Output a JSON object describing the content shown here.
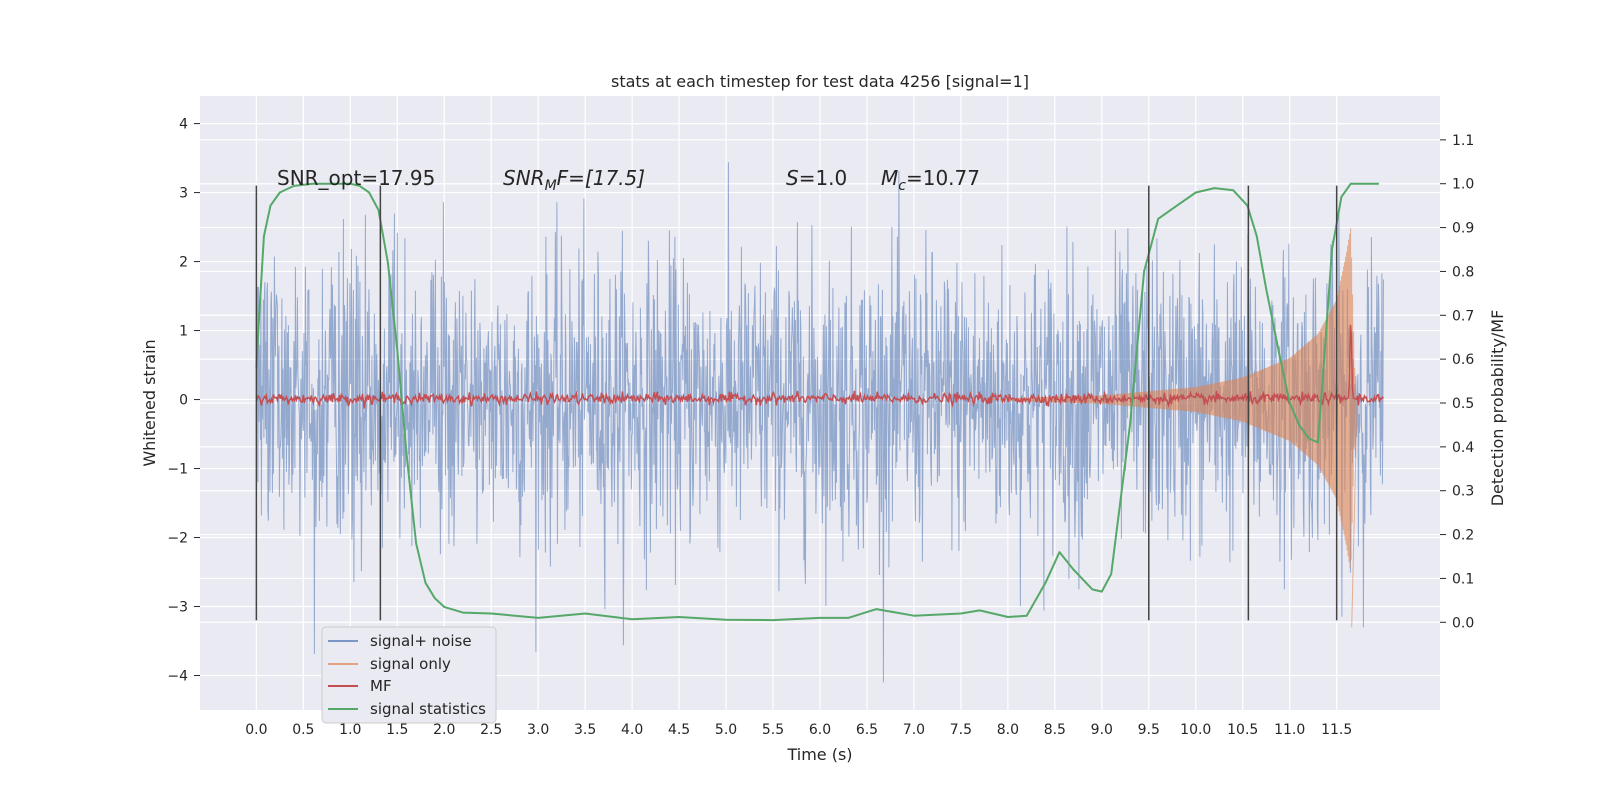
{
  "chart_data": {
    "type": "line",
    "title": "stats at each timestep for test data 4256 [signal=1]",
    "xlabel": "Time (s)",
    "ylabel": "Whitened strain",
    "y2label": "Detection probability/MF",
    "xlim": [
      -0.6,
      12.6
    ],
    "ylim": [
      -4.5,
      4.4
    ],
    "y2lim": [
      -0.2,
      1.2
    ],
    "x_ticks": [
      "0.0",
      "0.5",
      "1.0",
      "1.5",
      "2.0",
      "2.5",
      "3.0",
      "3.5",
      "4.0",
      "4.5",
      "5.0",
      "5.5",
      "6.0",
      "6.5",
      "7.0",
      "7.5",
      "8.0",
      "8.5",
      "9.0",
      "9.5",
      "10.0",
      "10.5",
      "11.0",
      "11.5"
    ],
    "y_ticks": [
      "−4",
      "−3",
      "−2",
      "−1",
      "0",
      "1",
      "2",
      "3",
      "4"
    ],
    "y2_ticks": [
      "0.0",
      "0.1",
      "0.2",
      "0.3",
      "0.4",
      "0.5",
      "0.6",
      "0.7",
      "0.8",
      "0.9",
      "1.0",
      "1.1"
    ],
    "grid": true,
    "legend_position": "bottom-left",
    "annotations": {
      "snr_opt": "SNR_opt=17.95",
      "snr_mf_prefix": "SNR",
      "snr_mf_sub": "M",
      "snr_mf_suffix": "F=[17.5]",
      "s_symbol": "S",
      "s_value": "=1.0",
      "mc_symbol": "M",
      "mc_sub": "c",
      "mc_value": "=10.77"
    },
    "vertical_lines_x": [
      0.0,
      1.32,
      9.5,
      10.56,
      11.5
    ],
    "series": [
      {
        "name": "signal+ noise",
        "color": "#4c72b0",
        "axis": "left",
        "style": "noise band ~N(0,1), whitened strain between about -4.1 and 4.0",
        "x_range": [
          0.0,
          12.0
        ]
      },
      {
        "name": "signal only",
        "color": "#dd8452",
        "axis": "left",
        "style": "chirp envelope, amplitude grows from 0 near t=8 to about ±2.5 at t=11.65",
        "envelope": [
          [
            8.0,
            0.02
          ],
          [
            9.0,
            0.06
          ],
          [
            10.0,
            0.18
          ],
          [
            10.5,
            0.32
          ],
          [
            11.0,
            0.6
          ],
          [
            11.3,
            0.95
          ],
          [
            11.5,
            1.45
          ],
          [
            11.6,
            2.1
          ],
          [
            11.65,
            2.5
          ],
          [
            11.7,
            0.0
          ]
        ]
      },
      {
        "name": "MF",
        "color": "#c44e52",
        "axis": "right",
        "style": "noisy level near 0.51 with peak 0.70 at t=11.65"
      },
      {
        "name": "signal statistics",
        "color": "#55a868",
        "axis": "right",
        "x": [
          0.0,
          0.03,
          0.08,
          0.15,
          0.25,
          0.4,
          0.6,
          0.8,
          1.0,
          1.1,
          1.2,
          1.3,
          1.4,
          1.5,
          1.6,
          1.7,
          1.8,
          1.9,
          2.0,
          2.2,
          2.5,
          3.0,
          3.5,
          4.0,
          4.5,
          5.0,
          5.5,
          6.0,
          6.3,
          6.6,
          7.0,
          7.5,
          7.7,
          8.0,
          8.2,
          8.4,
          8.55,
          8.7,
          8.9,
          9.0,
          9.1,
          9.3,
          9.45,
          9.6,
          9.8,
          10.0,
          10.2,
          10.4,
          10.55,
          10.65,
          10.75,
          10.9,
          11.0,
          11.1,
          11.2,
          11.3,
          11.35,
          11.45,
          11.55,
          11.65,
          11.8,
          11.95
        ],
        "y": [
          0.58,
          0.7,
          0.88,
          0.95,
          0.98,
          0.995,
          1.0,
          1.0,
          1.0,
          0.995,
          0.98,
          0.94,
          0.82,
          0.62,
          0.38,
          0.18,
          0.09,
          0.055,
          0.035,
          0.022,
          0.02,
          0.01,
          0.02,
          0.007,
          0.012,
          0.006,
          0.005,
          0.01,
          0.01,
          0.03,
          0.015,
          0.02,
          0.027,
          0.012,
          0.015,
          0.09,
          0.16,
          0.12,
          0.075,
          0.07,
          0.11,
          0.45,
          0.8,
          0.92,
          0.95,
          0.98,
          0.99,
          0.985,
          0.95,
          0.88,
          0.76,
          0.6,
          0.5,
          0.45,
          0.42,
          0.41,
          0.55,
          0.85,
          0.97,
          1.0,
          1.0,
          1.0
        ]
      }
    ]
  }
}
